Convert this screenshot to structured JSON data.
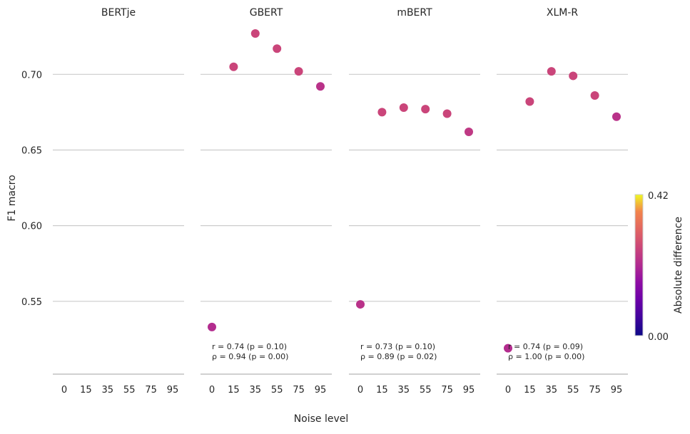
{
  "chart_data": {
    "type": "scatter",
    "xlabel": "Noise level",
    "ylabel": "F1 macro",
    "x_ticks": [
      "0",
      "15",
      "35",
      "55",
      "75",
      "95"
    ],
    "y_ticks": [
      "0.55",
      "0.60",
      "0.65",
      "0.70"
    ],
    "ylim": [
      0.508,
      0.735
    ],
    "grid": "horizontal",
    "colormap": "plasma",
    "colorbar": {
      "label": "Absolute  difference",
      "min": 0.0,
      "max": 0.42,
      "min_label": "0.00",
      "max_label": "0.42"
    },
    "panels": [
      {
        "title": "BERTje",
        "points": [],
        "annotation": []
      },
      {
        "title": "GBERT",
        "points": [
          {
            "x": "0",
            "y": 0.533,
            "diff": 0.19
          },
          {
            "x": "15",
            "y": 0.705,
            "diff": 0.23
          },
          {
            "x": "35",
            "y": 0.727,
            "diff": 0.23
          },
          {
            "x": "55",
            "y": 0.717,
            "diff": 0.23
          },
          {
            "x": "75",
            "y": 0.702,
            "diff": 0.23
          },
          {
            "x": "95",
            "y": 0.692,
            "diff": 0.2
          }
        ],
        "annotation": [
          "r = 0.74 (p = 0.10)",
          "ρ = 0.94 (p = 0.00)"
        ]
      },
      {
        "title": "mBERT",
        "points": [
          {
            "x": "0",
            "y": 0.548,
            "diff": 0.2
          },
          {
            "x": "15",
            "y": 0.675,
            "diff": 0.23
          },
          {
            "x": "35",
            "y": 0.678,
            "diff": 0.23
          },
          {
            "x": "55",
            "y": 0.677,
            "diff": 0.23
          },
          {
            "x": "75",
            "y": 0.674,
            "diff": 0.23
          },
          {
            "x": "95",
            "y": 0.662,
            "diff": 0.21
          }
        ],
        "annotation": [
          "r = 0.73 (p = 0.10)",
          "ρ = 0.89 (p = 0.02)"
        ]
      },
      {
        "title": "XLM-R",
        "points": [
          {
            "x": "0",
            "y": 0.519,
            "diff": 0.19
          },
          {
            "x": "15",
            "y": 0.682,
            "diff": 0.23
          },
          {
            "x": "35",
            "y": 0.702,
            "diff": 0.23
          },
          {
            "x": "55",
            "y": 0.699,
            "diff": 0.23
          },
          {
            "x": "75",
            "y": 0.686,
            "diff": 0.23
          },
          {
            "x": "95",
            "y": 0.672,
            "diff": 0.2
          }
        ],
        "annotation": [
          "r = 0.74 (p = 0.09)",
          "ρ = 1.00 (p = 0.00)"
        ]
      }
    ]
  }
}
